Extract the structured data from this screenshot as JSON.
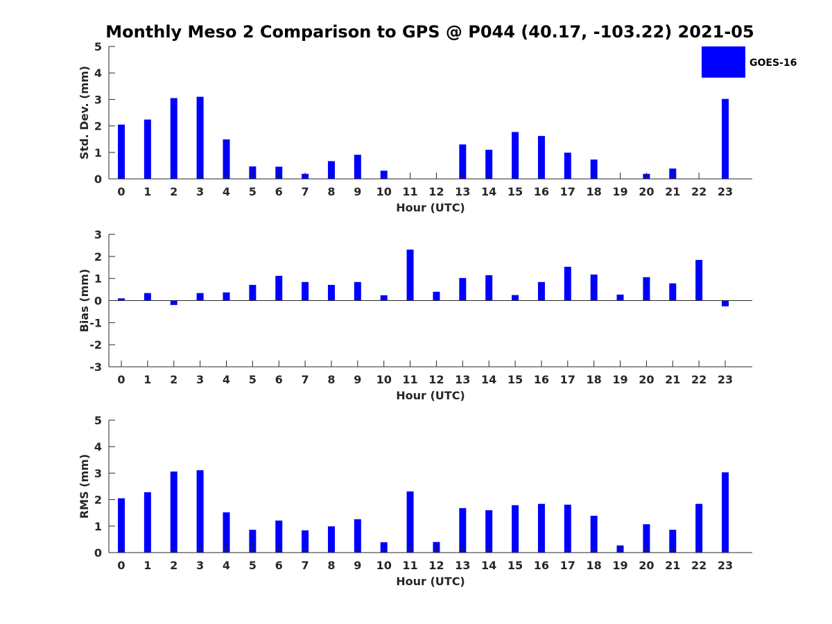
{
  "chart_data": {
    "title": "Monthly Meso 2 Comparison to GPS @ P044 (40.17, -103.22) 2021-05",
    "legend": {
      "label": "GOES-16",
      "color": "#0000ff",
      "placement": "top-right"
    },
    "panels": [
      {
        "type": "bar",
        "xlabel": "Hour (UTC)",
        "ylabel": "Std. Dev. (mm)",
        "ylim": [
          0,
          5
        ],
        "yticks": [
          0,
          1,
          2,
          3,
          4,
          5
        ],
        "categories": [
          "0",
          "1",
          "2",
          "3",
          "4",
          "5",
          "6",
          "7",
          "8",
          "9",
          "10",
          "11",
          "12",
          "13",
          "14",
          "15",
          "16",
          "17",
          "18",
          "19",
          "20",
          "21",
          "22",
          "23"
        ],
        "series": [
          {
            "name": "GOES-16",
            "values": [
              2.05,
              2.24,
              3.05,
              3.1,
              1.49,
              0.47,
              0.46,
              0.19,
              0.67,
              0.91,
              0.31,
              0,
              0,
              1.3,
              1.1,
              1.77,
              1.62,
              0.99,
              0.73,
              0,
              0.19,
              0.39,
              0,
              3.02
            ]
          }
        ]
      },
      {
        "type": "bar",
        "xlabel": "Hour (UTC)",
        "ylabel": "Bias (mm)",
        "ylim": [
          -3,
          3
        ],
        "yticks": [
          -3,
          -2,
          -1,
          0,
          1,
          2,
          3
        ],
        "categories": [
          "0",
          "1",
          "2",
          "3",
          "4",
          "5",
          "6",
          "7",
          "8",
          "9",
          "10",
          "11",
          "12",
          "13",
          "14",
          "15",
          "16",
          "17",
          "18",
          "19",
          "20",
          "21",
          "22",
          "23"
        ],
        "series": [
          {
            "name": "GOES-16",
            "values": [
              0.1,
              0.34,
              -0.2,
              0.34,
              0.37,
              0.71,
              1.12,
              0.84,
              0.71,
              0.84,
              0.24,
              2.31,
              0.4,
              1.02,
              1.15,
              0.25,
              0.84,
              1.53,
              1.18,
              0.27,
              1.06,
              0.78,
              1.84,
              -0.26
            ]
          }
        ]
      },
      {
        "type": "bar",
        "xlabel": "Hour (UTC)",
        "ylabel": "RMS (mm)",
        "ylim": [
          0,
          5
        ],
        "yticks": [
          0,
          1,
          2,
          3,
          4,
          5
        ],
        "categories": [
          "0",
          "1",
          "2",
          "3",
          "4",
          "5",
          "6",
          "7",
          "8",
          "9",
          "10",
          "11",
          "12",
          "13",
          "14",
          "15",
          "16",
          "17",
          "18",
          "19",
          "20",
          "21",
          "22",
          "23"
        ],
        "series": [
          {
            "name": "GOES-16",
            "values": [
              2.05,
              2.28,
              3.06,
              3.11,
              1.52,
              0.86,
              1.21,
              0.84,
              0.99,
              1.26,
              0.39,
              2.31,
              0.4,
              1.68,
              1.6,
              1.79,
              1.84,
              1.81,
              1.39,
              0.27,
              1.07,
              0.86,
              1.84,
              3.03
            ]
          }
        ]
      }
    ]
  }
}
